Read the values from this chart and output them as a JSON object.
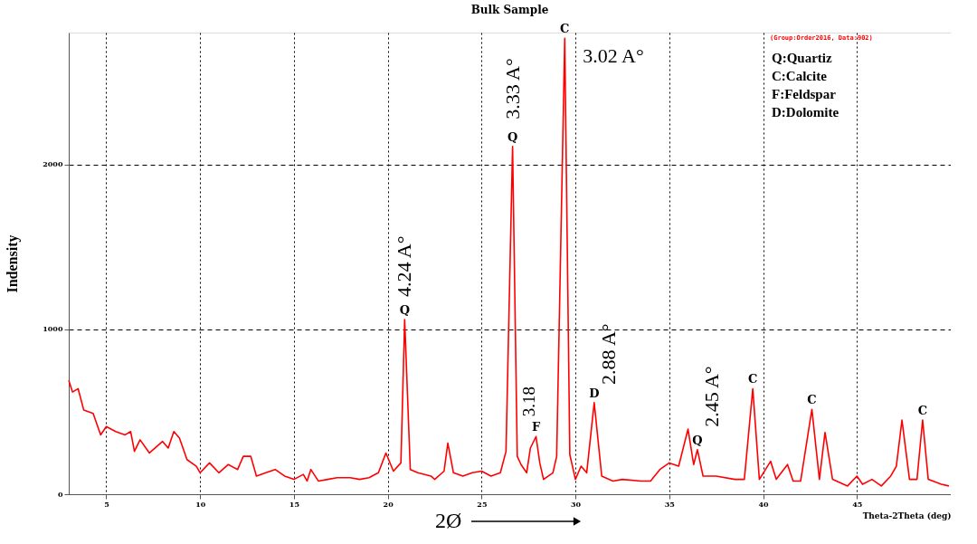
{
  "chart_data": {
    "type": "line",
    "title": "Bulk Sample",
    "xlabel": "Theta-2Theta (deg)",
    "ylabel": "Indensity",
    "xlim": [
      3,
      50
    ],
    "xticks": [
      5,
      10,
      15,
      20,
      25,
      30,
      35,
      40,
      45
    ],
    "ylim": [
      0,
      2800
    ],
    "yticks": [
      0,
      1000,
      2000
    ],
    "grid": true,
    "line_style": "solid",
    "marker": "none",
    "series": [
      {
        "color": "#ff0000",
        "x": [
          3.0,
          3.2,
          3.5,
          3.8,
          4.3,
          4.7,
          5.0,
          5.5,
          6.0,
          6.3,
          6.5,
          6.8,
          7.3,
          8.0,
          8.3,
          8.6,
          8.9,
          9.3,
          9.8,
          10.0,
          10.5,
          11.0,
          11.5,
          12.0,
          12.3,
          12.7,
          13.0,
          13.5,
          14.0,
          14.5,
          15.0,
          15.5,
          15.7,
          15.9,
          16.3,
          16.8,
          17.3,
          18.0,
          18.5,
          19.0,
          19.5,
          19.9,
          20.3,
          20.7,
          20.9,
          21.2,
          21.6,
          22.3,
          22.5,
          23.0,
          23.2,
          23.5,
          24.0,
          24.5,
          25.0,
          25.5,
          26.0,
          26.3,
          26.65,
          26.9,
          27.1,
          27.4,
          27.6,
          27.9,
          28.1,
          28.3,
          28.8,
          29.0,
          29.43,
          29.7,
          30.0,
          30.3,
          30.6,
          31.0,
          31.4,
          32.0,
          32.5,
          33.5,
          34.0,
          34.5,
          35.0,
          35.5,
          36.0,
          36.3,
          36.5,
          36.8,
          37.5,
          38.5,
          39.0,
          39.45,
          39.8,
          40.4,
          40.7,
          41.3,
          41.6,
          42.0,
          42.6,
          43.0,
          43.3,
          43.7,
          44.5,
          45.0,
          45.3,
          45.8,
          46.3,
          46.8,
          47.1,
          47.4,
          47.8,
          48.2,
          48.5,
          48.8,
          49.5,
          49.9
        ],
        "values": [
          690,
          620,
          640,
          510,
          490,
          360,
          410,
          380,
          360,
          380,
          260,
          330,
          250,
          320,
          280,
          380,
          340,
          210,
          170,
          130,
          190,
          130,
          180,
          150,
          230,
          230,
          110,
          130,
          150,
          110,
          90,
          120,
          80,
          150,
          80,
          90,
          100,
          100,
          90,
          100,
          130,
          250,
          140,
          190,
          1060,
          150,
          130,
          110,
          90,
          140,
          310,
          130,
          110,
          130,
          140,
          110,
          130,
          260,
          2110,
          230,
          180,
          130,
          280,
          350,
          190,
          90,
          130,
          230,
          2765,
          240,
          90,
          170,
          130,
          555,
          110,
          80,
          90,
          80,
          80,
          150,
          190,
          170,
          395,
          180,
          270,
          110,
          110,
          90,
          90,
          640,
          90,
          200,
          90,
          180,
          80,
          80,
          515,
          90,
          375,
          90,
          50,
          110,
          60,
          90,
          50,
          110,
          170,
          450,
          90,
          90,
          450,
          90,
          60,
          50
        ]
      }
    ],
    "annotations": [
      {
        "text": "Q",
        "x": 20.9,
        "y": 1060
      },
      {
        "text": "Q",
        "x": 26.65,
        "y": 2110
      },
      {
        "text": "C",
        "x": 29.43,
        "y": 2765
      },
      {
        "text": "F",
        "x": 27.9,
        "y": 350
      },
      {
        "text": "D",
        "x": 31.0,
        "y": 555
      },
      {
        "text": "Q",
        "x": 36.5,
        "y": 270
      },
      {
        "text": "C",
        "x": 39.45,
        "y": 640
      },
      {
        "text": "C",
        "x": 42.6,
        "y": 515
      },
      {
        "text": "C",
        "x": 48.5,
        "y": 450
      },
      {
        "text": "4.24 A°",
        "x": 20.9,
        "y": 1060
      },
      {
        "text": "3.33 A°",
        "x": 26.65,
        "y": 2110
      },
      {
        "text": "3.02 A°",
        "x": 29.43,
        "y": 2765
      },
      {
        "text": "3.18",
        "x": 27.9,
        "y": 350
      },
      {
        "text": "2.88 A°",
        "x": 31.0,
        "y": 555
      },
      {
        "text": "2.45 A°",
        "x": 36.5,
        "y": 270
      },
      "(Group:Order2016, Data:902)",
      "Q:Quartiz",
      "C:Calcite",
      "F:Feldspar",
      "D:Dolomite",
      "2Ø"
    ]
  }
}
